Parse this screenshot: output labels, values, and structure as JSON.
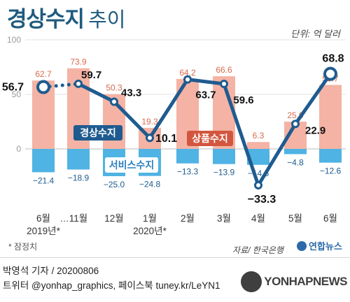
{
  "title": {
    "main": "경상수지",
    "sub": "추이"
  },
  "unit": "단위: 억 달러",
  "chart_data": {
    "type": "bar",
    "categories": [
      "6월",
      "11월",
      "12월",
      "1월",
      "2월",
      "3월",
      "4월",
      "5월",
      "6월"
    ],
    "year_labels": [
      {
        "index": 0,
        "label": "2019년*"
      },
      {
        "index": 3,
        "label": "2020년*"
      }
    ],
    "gap_marker": "…",
    "y_ticks": [
      100,
      50,
      0
    ],
    "ylim": [
      -40,
      110
    ],
    "grid": true,
    "series": [
      {
        "name": "상품수지",
        "kind": "bar",
        "color": "#f4b3a4",
        "values": [
          62.7,
          73.9,
          50.3,
          19.3,
          64.2,
          66.6,
          6.3,
          25.0,
          58.7
        ],
        "labels": [
          "62.7",
          "73.9",
          "50.3",
          "19.3",
          "64.2",
          "66.6",
          "6.3",
          "25.0",
          "58.7"
        ]
      },
      {
        "name": "서비스수지",
        "kind": "bar",
        "color": "#4fb3e3",
        "values": [
          -21.4,
          -18.9,
          -25.0,
          -24.8,
          -13.3,
          -13.9,
          -14.6,
          -4.8,
          -12.6
        ],
        "labels": [
          "−21.4",
          "−18.9",
          "−25.0",
          "−24.8",
          "−13.3",
          "−13.9",
          "−14.6",
          "−4.8",
          "−12.6"
        ]
      },
      {
        "name": "경상수지",
        "kind": "line",
        "color": "#1f5b8f",
        "values": [
          56.7,
          59.7,
          43.3,
          10.1,
          63.7,
          59.6,
          -33.3,
          22.9,
          68.8
        ],
        "labels": [
          "56.7",
          "59.7",
          "43.3",
          "10.1",
          "63.7",
          "59.6",
          "−33.3",
          "22.9",
          "68.8"
        ]
      }
    ]
  },
  "footnote": "* 잠정치",
  "source": "자료/ 한국은행",
  "logo": "연합뉴스",
  "credit": {
    "line1": "박영석 기자 / 20200806",
    "line2": "트위터 @yonhap_graphics, 페이스북 tuney.kr/LeYN1"
  },
  "watermark": "YONHAPNEWS"
}
